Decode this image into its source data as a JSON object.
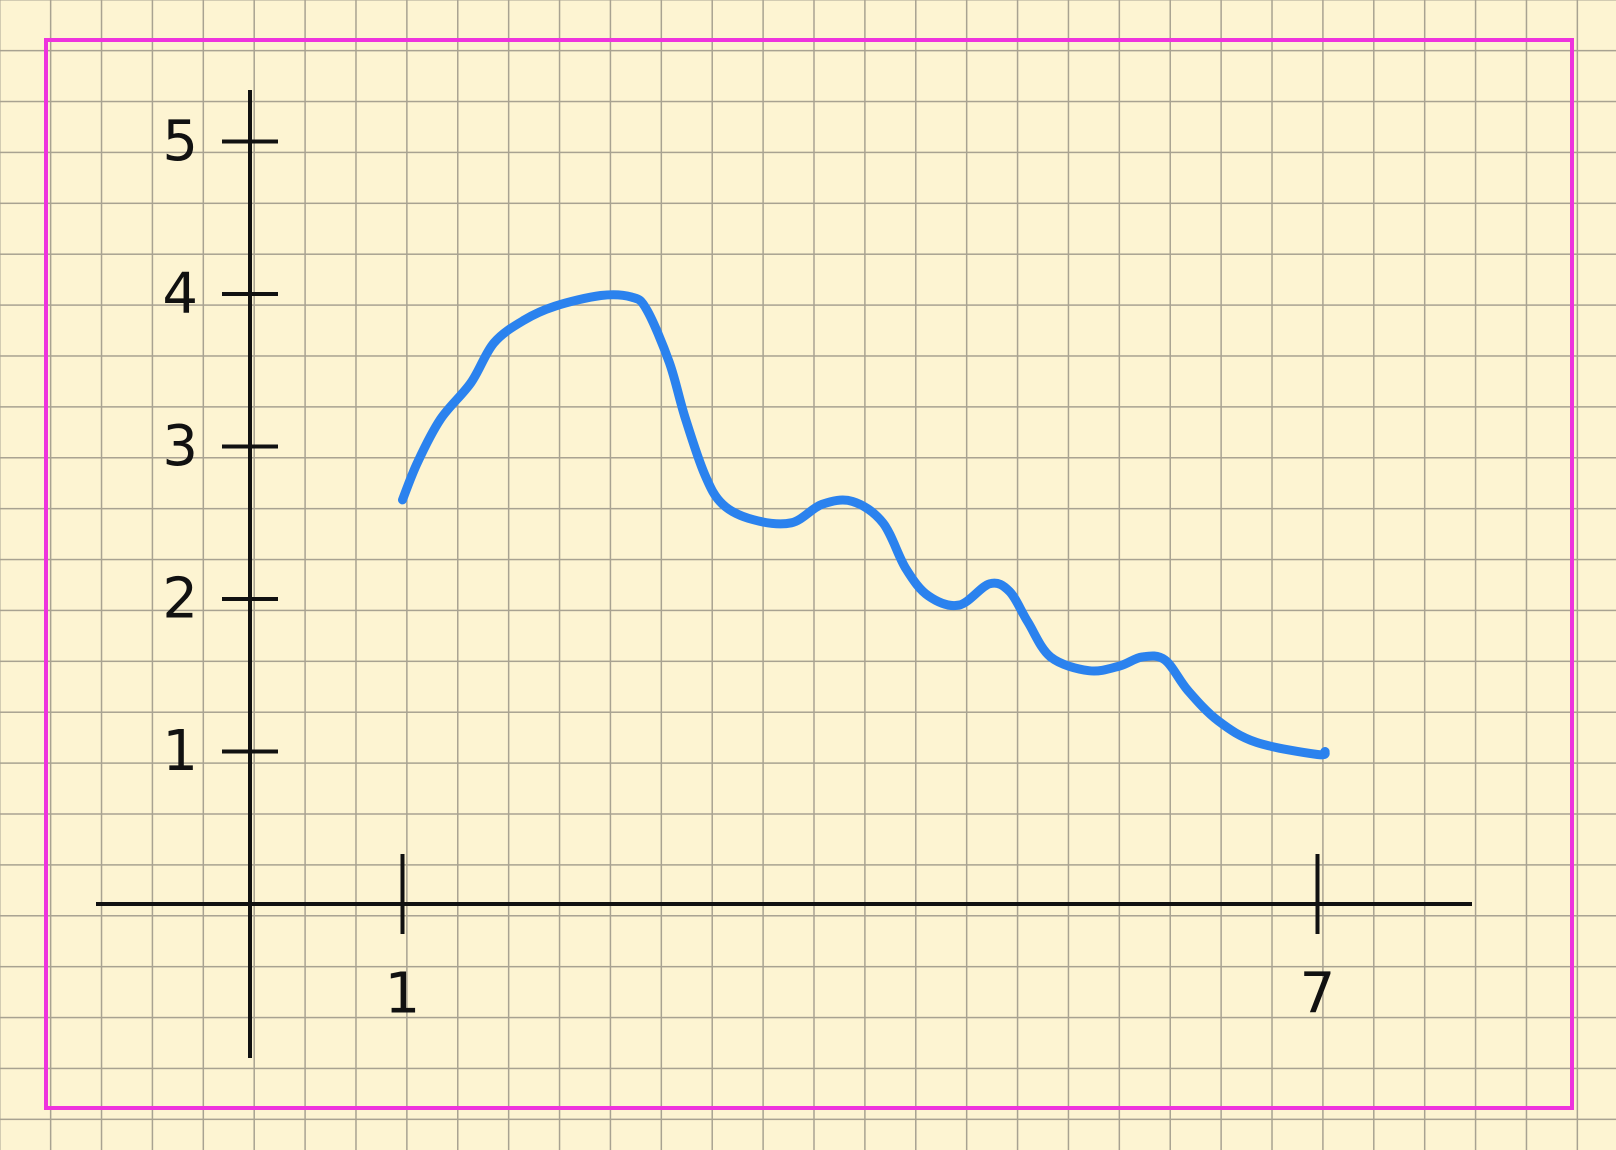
{
  "colors": {
    "paper": "#fdf4d2",
    "grid": "#a8a291",
    "frame": "#ee33dd",
    "axes": "#111111",
    "series": "#2b82ee"
  },
  "chart_data": {
    "type": "line",
    "xlim": [
      0,
      7.5
    ],
    "ylim": [
      0,
      5
    ],
    "x_ticks": [
      {
        "value": 1,
        "label": "1"
      },
      {
        "value": 7,
        "label": "7"
      }
    ],
    "y_ticks": [
      {
        "value": 1,
        "label": "1"
      },
      {
        "value": 2,
        "label": "2"
      },
      {
        "value": 3,
        "label": "3"
      },
      {
        "value": 4,
        "label": "4"
      },
      {
        "value": 5,
        "label": "5"
      }
    ],
    "grid": true,
    "series": [
      {
        "points": [
          [
            1.0,
            2.65
          ],
          [
            1.1,
            2.9
          ],
          [
            1.25,
            3.18
          ],
          [
            1.45,
            3.42
          ],
          [
            1.6,
            3.68
          ],
          [
            1.8,
            3.83
          ],
          [
            2.0,
            3.92
          ],
          [
            2.3,
            3.99
          ],
          [
            2.5,
            3.98
          ],
          [
            2.6,
            3.9
          ],
          [
            2.75,
            3.55
          ],
          [
            2.85,
            3.2
          ],
          [
            2.98,
            2.82
          ],
          [
            3.1,
            2.62
          ],
          [
            3.3,
            2.52
          ],
          [
            3.55,
            2.5
          ],
          [
            3.75,
            2.62
          ],
          [
            3.95,
            2.64
          ],
          [
            4.15,
            2.5
          ],
          [
            4.3,
            2.2
          ],
          [
            4.45,
            2.02
          ],
          [
            4.65,
            1.96
          ],
          [
            4.85,
            2.1
          ],
          [
            4.98,
            2.05
          ],
          [
            5.1,
            1.85
          ],
          [
            5.25,
            1.62
          ],
          [
            5.5,
            1.53
          ],
          [
            5.7,
            1.56
          ],
          [
            5.85,
            1.62
          ],
          [
            6.0,
            1.6
          ],
          [
            6.15,
            1.4
          ],
          [
            6.35,
            1.2
          ],
          [
            6.6,
            1.06
          ],
          [
            7.0,
            0.98
          ],
          [
            7.05,
            1.0
          ]
        ]
      }
    ]
  }
}
